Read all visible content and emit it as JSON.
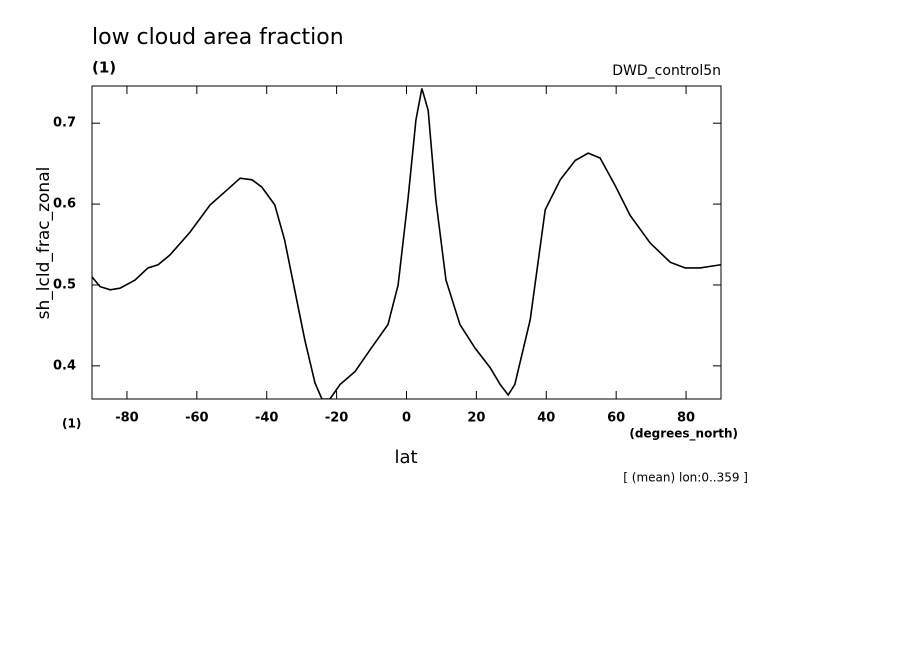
{
  "chart_data": {
    "type": "line",
    "title": "low cloud area fraction",
    "subtitle": "(1)",
    "dataset": "DWD_control5n",
    "ylabel": "sh_lcld_frac_zonal",
    "xlabel": "lat",
    "xunits": "(degrees_north)",
    "yunits": "(1)",
    "annotation": "[ (mean) lon:0..359 ]",
    "xlim": [
      -90,
      90
    ],
    "ylim": [
      0.359,
      0.746
    ],
    "xticks": [
      -80,
      -60,
      -40,
      -20,
      0,
      20,
      40,
      60,
      80
    ],
    "yticks": [
      0.4,
      0.5,
      0.6,
      0.7
    ],
    "series": [
      {
        "name": "sh_lcld_frac_zonal",
        "color": "#000000",
        "x": [
          -90,
          -87.7,
          -84.8,
          -82,
          -77.7,
          -74,
          -71.1,
          -67.7,
          -62,
          -56.2,
          -52,
          -47.6,
          -44.2,
          -41.4,
          -37.7,
          -34.9,
          -32,
          -29.1,
          -26.2,
          -24.2,
          -21.9,
          -19,
          -14.7,
          -10.4,
          -5.3,
          -2.4,
          0.4,
          2.7,
          4.4,
          6.2,
          8.4,
          11.3,
          15.3,
          19.6,
          23.9,
          26.8,
          29.1,
          31,
          35.4,
          39.7,
          44,
          48.3,
          52,
          55.4,
          59.7,
          64,
          69.7,
          75.5,
          79.8,
          84,
          90
        ],
        "values": [
          0.51,
          0.498,
          0.494,
          0.496,
          0.506,
          0.521,
          0.525,
          0.537,
          0.565,
          0.599,
          0.615,
          0.632,
          0.63,
          0.621,
          0.599,
          0.556,
          0.494,
          0.432,
          0.379,
          0.359,
          0.359,
          0.377,
          0.393,
          0.42,
          0.451,
          0.5,
          0.605,
          0.704,
          0.743,
          0.716,
          0.605,
          0.506,
          0.451,
          0.422,
          0.398,
          0.377,
          0.364,
          0.377,
          0.457,
          0.593,
          0.63,
          0.654,
          0.663,
          0.657,
          0.623,
          0.586,
          0.552,
          0.528,
          0.521,
          0.521,
          0.525
        ]
      }
    ]
  }
}
